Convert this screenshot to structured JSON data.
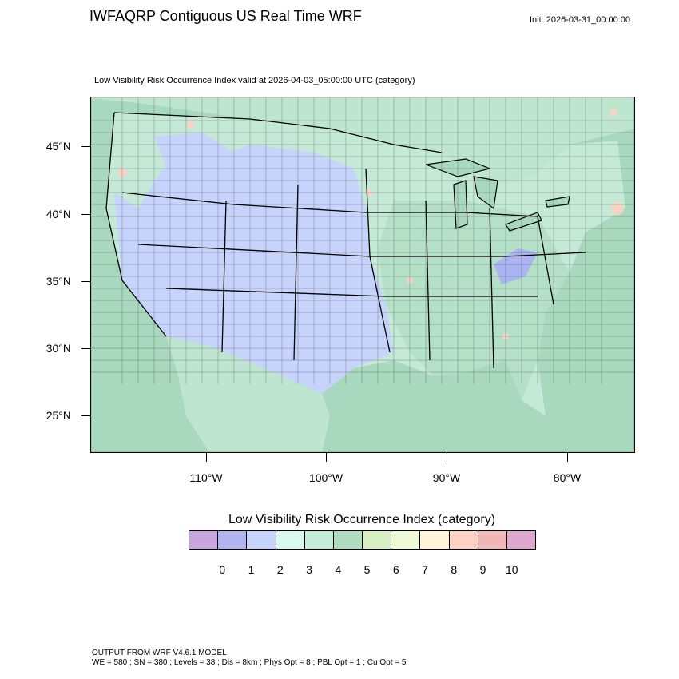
{
  "header": {
    "title": "IWFAQRP Contiguous US Real Time WRF",
    "init": "Init: 2026-03-31_00:00:00",
    "subtitle": "Low Visibility Risk Occurrence Index valid at 2026-04-03_05:00:00 UTC   (category)"
  },
  "map": {
    "lat_labels": [
      "45°N",
      "40°N",
      "35°N",
      "30°N",
      "25°N"
    ],
    "lon_labels": [
      "110°W",
      "100°W",
      "90°W",
      "80°W"
    ],
    "ocean_color": "#a8d8bd",
    "land_color": "#c4e9d6",
    "low_color": "#c6d3fa",
    "mid_color": "#b4e0c8",
    "very_low_color": "#a9b4f0"
  },
  "legend": {
    "title": "Low Visibility Risk Occurrence Index  (category)",
    "labels": [
      "0",
      "1",
      "2",
      "3",
      "4",
      "5",
      "6",
      "7",
      "8",
      "9",
      "10"
    ],
    "colors": [
      "#c9a6dd",
      "#b2b4ef",
      "#c6d4fb",
      "#d9f8f0",
      "#c5ebd9",
      "#aedcc0",
      "#d9efc4",
      "#eef9d6",
      "#fff3d9",
      "#fdd2c4",
      "#f1b6b6",
      "#dda7ce"
    ]
  },
  "footer": {
    "line1": "OUTPUT FROM WRF V4.6.1 MODEL",
    "line2": "WE = 580 ; SN = 380 ; Levels = 38 ; Dis = 8km ; Phys Opt = 8 ; PBL Opt = 1 ; Cu Opt = 5"
  }
}
